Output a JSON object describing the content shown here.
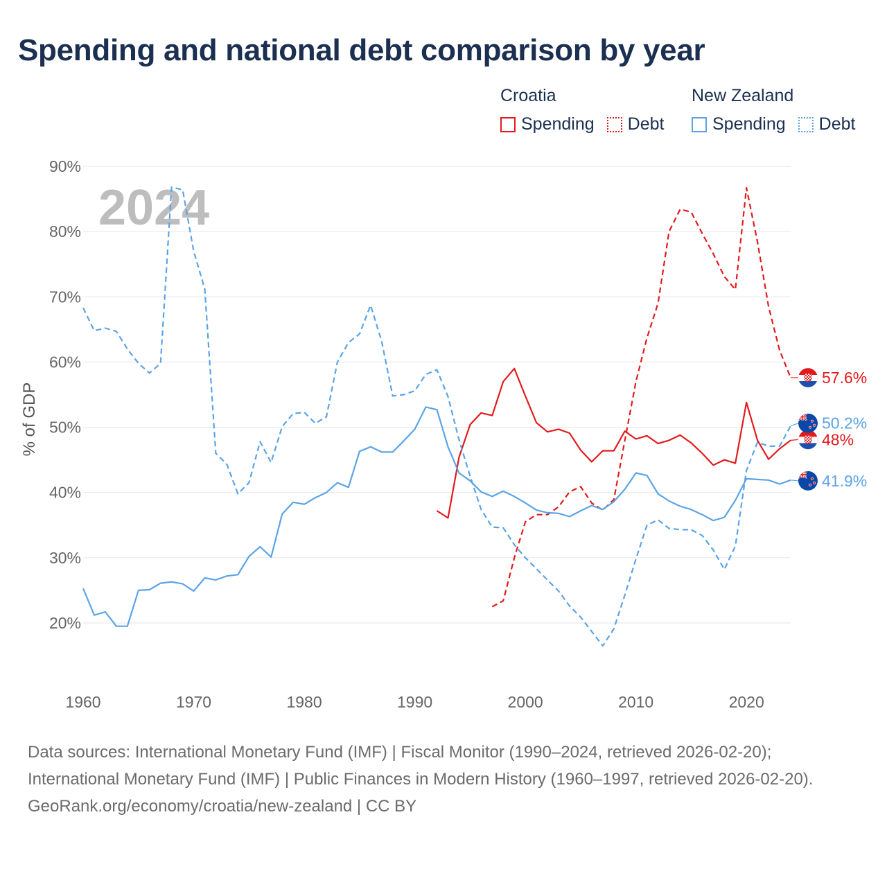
{
  "title": "Spending and national debt comparison by year",
  "legend": {
    "croatia": {
      "name": "Croatia",
      "spending": "Spending",
      "debt": "Debt"
    },
    "nz": {
      "name": "New Zealand",
      "spending": "Spending",
      "debt": "Debt"
    }
  },
  "footer": {
    "sources": "Data sources: International Monetary Fund (IMF) | Fiscal Monitor (1990–2024, retrieved 2026-02-20); International Monetary Fund (IMF) | Public Finances in Modern History (1960–1997, retrieved 2026-02-20).",
    "credit": "GeoRank.org/economy/croatia/new-zealand | CC BY"
  },
  "colors": {
    "croatia": "#e31a1c",
    "nz": "#5ba3e6"
  },
  "chart_data": {
    "type": "line",
    "title": "Spending and national debt comparison by year",
    "ylabel": "% of GDP",
    "xlabel": "",
    "year_label": "2024",
    "ylim": [
      10,
      90
    ],
    "xlim": [
      1960,
      2024
    ],
    "y_ticks": [
      20,
      30,
      40,
      50,
      60,
      70,
      80,
      90
    ],
    "y_tick_labels": [
      "20%",
      "30%",
      "40%",
      "50%",
      "60%",
      "70%",
      "80%",
      "90%"
    ],
    "x_ticks": [
      1960,
      1970,
      1980,
      1990,
      2000,
      2010,
      2020
    ],
    "x_tick_labels": [
      "1960",
      "1970",
      "1980",
      "1990",
      "2000",
      "2010",
      "2020"
    ],
    "series": [
      {
        "name": "Croatia Debt",
        "country": "croatia",
        "style": "dashed",
        "end_label": "57.6%",
        "x": [
          1997,
          1998,
          1999,
          2000,
          2001,
          2002,
          2003,
          2004,
          2005,
          2006,
          2007,
          2008,
          2009,
          2010,
          2011,
          2012,
          2013,
          2014,
          2015,
          2016,
          2017,
          2018,
          2019,
          2020,
          2021,
          2022,
          2023,
          2024
        ],
        "values": [
          22.5,
          23.4,
          30.0,
          35.5,
          36.6,
          36.6,
          37.8,
          40.1,
          40.9,
          38.4,
          37.3,
          38.9,
          48.0,
          57.0,
          63.7,
          69.0,
          80.0,
          83.4,
          83.0,
          79.7,
          76.6,
          73.1,
          71.1,
          86.7,
          78.4,
          68.5,
          61.8,
          57.6
        ]
      },
      {
        "name": "Croatia Spending",
        "country": "croatia",
        "style": "solid",
        "end_label": "48%",
        "x": [
          1992,
          1993,
          1994,
          1995,
          1996,
          1997,
          1998,
          1999,
          2000,
          2001,
          2002,
          2003,
          2004,
          2005,
          2006,
          2007,
          2008,
          2009,
          2010,
          2011,
          2012,
          2013,
          2014,
          2015,
          2016,
          2017,
          2018,
          2019,
          2020,
          2021,
          2022,
          2023,
          2024
        ],
        "values": [
          37.2,
          36.1,
          45.4,
          50.4,
          52.2,
          51.8,
          57.0,
          59.0,
          54.8,
          50.7,
          49.3,
          49.7,
          49.1,
          46.5,
          44.7,
          46.4,
          46.4,
          49.4,
          48.2,
          48.7,
          47.5,
          48.0,
          48.8,
          47.6,
          46.0,
          44.2,
          45.0,
          44.5,
          53.8,
          48.0,
          45.1,
          46.7,
          48.0
        ]
      },
      {
        "name": "New Zealand Debt",
        "country": "nz",
        "style": "dashed",
        "end_label": "50.2%",
        "x": [
          1960,
          1961,
          1962,
          1963,
          1964,
          1965,
          1966,
          1967,
          1968,
          1969,
          1970,
          1971,
          1972,
          1973,
          1974,
          1975,
          1976,
          1977,
          1978,
          1979,
          1980,
          1981,
          1982,
          1983,
          1984,
          1985,
          1986,
          1987,
          1988,
          1989,
          1990,
          1991,
          1992,
          1993,
          1994,
          1995,
          1996,
          1997,
          1998,
          1999,
          2000,
          2001,
          2002,
          2003,
          2004,
          2005,
          2006,
          2007,
          2008,
          2009,
          2010,
          2011,
          2012,
          2013,
          2014,
          2015,
          2016,
          2017,
          2018,
          2019,
          2020,
          2021,
          2022,
          2023,
          2024
        ],
        "values": [
          68.3,
          64.8,
          65.2,
          64.7,
          62.0,
          59.8,
          58.3,
          59.8,
          86.8,
          86.4,
          77.0,
          71.2,
          46.0,
          44.3,
          39.8,
          41.5,
          47.8,
          44.6,
          50.1,
          52.1,
          52.3,
          50.6,
          51.6,
          60.0,
          63.0,
          64.3,
          68.7,
          63.2,
          54.8,
          55.0,
          55.6,
          58.1,
          58.8,
          54.7,
          48.1,
          42.5,
          37.4,
          34.7,
          34.6,
          32.0,
          30.0,
          28.3,
          26.6,
          24.9,
          22.6,
          20.9,
          18.7,
          16.5,
          19.1,
          24.3,
          29.8,
          35.0,
          35.8,
          34.5,
          34.3,
          34.3,
          33.4,
          31.2,
          28.2,
          31.8,
          43.4,
          47.7,
          47.1,
          47.1,
          50.2
        ]
      },
      {
        "name": "New Zealand Spending",
        "country": "nz",
        "style": "solid",
        "end_label": "41.9%",
        "x": [
          1960,
          1961,
          1962,
          1963,
          1964,
          1965,
          1966,
          1967,
          1968,
          1969,
          1970,
          1971,
          1972,
          1973,
          1974,
          1975,
          1976,
          1977,
          1978,
          1979,
          1980,
          1981,
          1982,
          1983,
          1984,
          1985,
          1986,
          1987,
          1988,
          1989,
          1990,
          1991,
          1992,
          1993,
          1994,
          1995,
          1996,
          1997,
          1998,
          1999,
          2000,
          2001,
          2002,
          2003,
          2004,
          2005,
          2006,
          2007,
          2008,
          2009,
          2010,
          2011,
          2012,
          2013,
          2014,
          2015,
          2016,
          2017,
          2018,
          2019,
          2020,
          2021,
          2022,
          2023,
          2024
        ],
        "values": [
          25.3,
          21.2,
          21.7,
          19.5,
          19.5,
          25.0,
          25.1,
          26.1,
          26.3,
          26.0,
          24.9,
          26.9,
          26.6,
          27.2,
          27.4,
          30.2,
          31.7,
          30.1,
          36.7,
          38.5,
          38.2,
          39.2,
          40.0,
          41.5,
          40.8,
          46.3,
          47.0,
          46.2,
          46.2,
          47.9,
          49.7,
          53.1,
          52.7,
          47.0,
          43.0,
          41.8,
          40.1,
          39.4,
          40.2,
          39.4,
          38.4,
          37.3,
          36.9,
          36.8,
          36.3,
          37.2,
          38.0,
          37.4,
          38.6,
          40.5,
          43.0,
          42.6,
          39.8,
          38.7,
          37.9,
          37.4,
          36.6,
          35.7,
          36.2,
          38.8,
          42.1,
          42.0,
          41.9,
          41.3,
          41.9
        ]
      }
    ]
  }
}
